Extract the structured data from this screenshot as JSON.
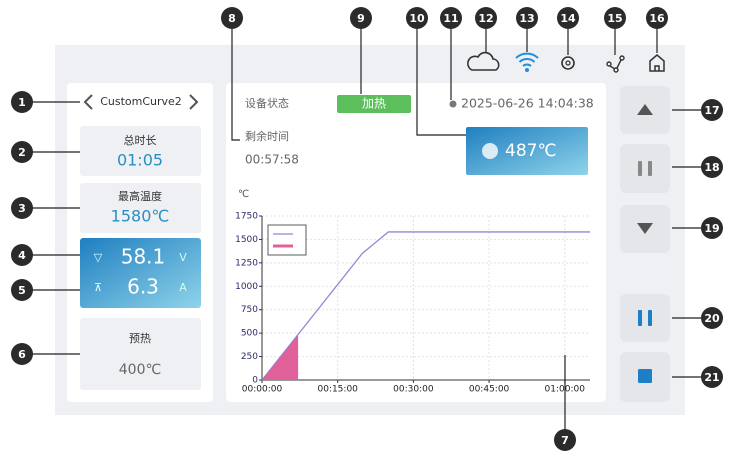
{
  "callouts": [
    1,
    2,
    3,
    4,
    5,
    6,
    7,
    8,
    9,
    10,
    11,
    12,
    13,
    14,
    15,
    16,
    17,
    18,
    19,
    20,
    21
  ],
  "curve_selector": {
    "name": "CustomCurve2"
  },
  "total_time": {
    "label": "总时长",
    "value": "01:05"
  },
  "max_temp": {
    "label": "最高温度",
    "value": "1580℃"
  },
  "electric": {
    "voltage": "58.1",
    "voltage_unit": "V",
    "current": "6.3",
    "current_unit": "A"
  },
  "preheat": {
    "label": "预热",
    "value": "400℃"
  },
  "status": {
    "label": "设备状态",
    "state": "加热",
    "datetime": "2025-06-26 14:04:38"
  },
  "remaining": {
    "label": "剩余时间",
    "value": "00:57:58"
  },
  "current_temperature": "487℃",
  "chart_data": {
    "type": "line",
    "ylabel": "℃",
    "xlim": [
      0,
      3900
    ],
    "ylim": [
      0,
      1750
    ],
    "xticks": [
      {
        "value": 0,
        "label": "00:00:00"
      },
      {
        "value": 900,
        "label": "00:15:00"
      },
      {
        "value": 1800,
        "label": "00:30:00"
      },
      {
        "value": 2700,
        "label": "00:45:00"
      },
      {
        "value": 3600,
        "label": "01:00:00"
      }
    ],
    "yticks": [
      0,
      250,
      500,
      750,
      1000,
      1250,
      1500,
      1750
    ],
    "grid": true,
    "legend": "upper left",
    "series": [
      {
        "kind": "line",
        "color": "#8e88d8",
        "x": [
          0,
          1192,
          1502,
          3900
        ],
        "values": [
          0,
          1350,
          1580,
          1580
        ]
      },
      {
        "kind": "area",
        "color": "#e0609a",
        "x": [
          0,
          429
        ],
        "values": [
          0,
          480
        ]
      }
    ]
  }
}
